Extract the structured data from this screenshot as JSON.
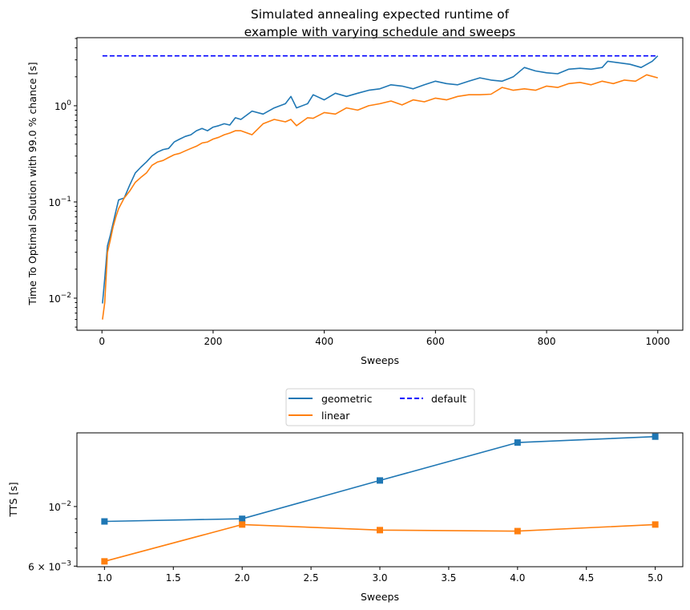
{
  "chart_data": [
    {
      "type": "line",
      "title": [
        "Simulated annealing expected runtime of",
        "example with varying schedule and sweeps"
      ],
      "xlabel": "Sweeps",
      "ylabel": "Time To Optimal Solution with 99.0 % chance [s]",
      "xlim": [
        -45,
        1045
      ],
      "ylim": [
        0.00464,
        5.1
      ],
      "yscale": "log",
      "xticks": [
        0,
        200,
        400,
        600,
        800,
        1000
      ],
      "yticks": [
        {
          "value": 1,
          "base": "10",
          "exp": "0"
        },
        {
          "value": 0.1,
          "base": "10",
          "exp": "−1"
        },
        {
          "value": 0.01,
          "base": "10",
          "exp": "−2"
        }
      ],
      "grid": false,
      "series": [
        {
          "name": "geometric",
          "color": "#1f77b4",
          "style": "solid",
          "points": [
            [
              1,
              0.0088
            ],
            [
              5,
              0.016
            ],
            [
              10,
              0.035
            ],
            [
              15,
              0.045
            ],
            [
              20,
              0.06
            ],
            [
              25,
              0.08
            ],
            [
              30,
              0.105
            ],
            [
              40,
              0.11
            ],
            [
              50,
              0.15
            ],
            [
              60,
              0.2
            ],
            [
              70,
              0.23
            ],
            [
              80,
              0.26
            ],
            [
              90,
              0.3
            ],
            [
              100,
              0.33
            ],
            [
              110,
              0.35
            ],
            [
              120,
              0.36
            ],
            [
              130,
              0.42
            ],
            [
              140,
              0.45
            ],
            [
              150,
              0.48
            ],
            [
              160,
              0.5
            ],
            [
              170,
              0.55
            ],
            [
              180,
              0.58
            ],
            [
              190,
              0.55
            ],
            [
              200,
              0.6
            ],
            [
              210,
              0.62
            ],
            [
              220,
              0.65
            ],
            [
              230,
              0.63
            ],
            [
              240,
              0.75
            ],
            [
              250,
              0.72
            ],
            [
              270,
              0.88
            ],
            [
              290,
              0.82
            ],
            [
              310,
              0.95
            ],
            [
              330,
              1.05
            ],
            [
              340,
              1.25
            ],
            [
              350,
              0.95
            ],
            [
              370,
              1.05
            ],
            [
              380,
              1.3
            ],
            [
              400,
              1.15
            ],
            [
              420,
              1.35
            ],
            [
              440,
              1.25
            ],
            [
              460,
              1.35
            ],
            [
              480,
              1.45
            ],
            [
              500,
              1.5
            ],
            [
              520,
              1.65
            ],
            [
              540,
              1.6
            ],
            [
              560,
              1.5
            ],
            [
              580,
              1.65
            ],
            [
              600,
              1.8
            ],
            [
              620,
              1.7
            ],
            [
              640,
              1.65
            ],
            [
              660,
              1.8
            ],
            [
              680,
              1.95
            ],
            [
              700,
              1.85
            ],
            [
              720,
              1.8
            ],
            [
              740,
              2.0
            ],
            [
              760,
              2.5
            ],
            [
              780,
              2.3
            ],
            [
              800,
              2.2
            ],
            [
              820,
              2.15
            ],
            [
              840,
              2.4
            ],
            [
              860,
              2.45
            ],
            [
              880,
              2.4
            ],
            [
              900,
              2.5
            ],
            [
              910,
              2.9
            ],
            [
              930,
              2.8
            ],
            [
              950,
              2.7
            ],
            [
              970,
              2.5
            ],
            [
              990,
              2.9
            ],
            [
              1000,
              3.3
            ]
          ]
        },
        {
          "name": "linear",
          "color": "#ff7f0e",
          "style": "solid",
          "points": [
            [
              1,
              0.006
            ],
            [
              5,
              0.009
            ],
            [
              10,
              0.03
            ],
            [
              15,
              0.04
            ],
            [
              20,
              0.055
            ],
            [
              25,
              0.07
            ],
            [
              30,
              0.085
            ],
            [
              40,
              0.11
            ],
            [
              50,
              0.13
            ],
            [
              60,
              0.16
            ],
            [
              70,
              0.18
            ],
            [
              80,
              0.2
            ],
            [
              90,
              0.24
            ],
            [
              100,
              0.26
            ],
            [
              110,
              0.27
            ],
            [
              120,
              0.29
            ],
            [
              130,
              0.31
            ],
            [
              140,
              0.32
            ],
            [
              150,
              0.34
            ],
            [
              160,
              0.36
            ],
            [
              170,
              0.38
            ],
            [
              180,
              0.41
            ],
            [
              190,
              0.42
            ],
            [
              200,
              0.45
            ],
            [
              210,
              0.47
            ],
            [
              220,
              0.5
            ],
            [
              230,
              0.52
            ],
            [
              240,
              0.55
            ],
            [
              250,
              0.55
            ],
            [
              270,
              0.5
            ],
            [
              290,
              0.65
            ],
            [
              310,
              0.72
            ],
            [
              330,
              0.68
            ],
            [
              340,
              0.72
            ],
            [
              350,
              0.62
            ],
            [
              370,
              0.75
            ],
            [
              380,
              0.74
            ],
            [
              400,
              0.85
            ],
            [
              420,
              0.82
            ],
            [
              440,
              0.95
            ],
            [
              460,
              0.9
            ],
            [
              480,
              1.0
            ],
            [
              500,
              1.05
            ],
            [
              520,
              1.12
            ],
            [
              540,
              1.02
            ],
            [
              560,
              1.15
            ],
            [
              580,
              1.1
            ],
            [
              600,
              1.2
            ],
            [
              620,
              1.15
            ],
            [
              640,
              1.25
            ],
            [
              660,
              1.3
            ],
            [
              680,
              1.3
            ],
            [
              700,
              1.32
            ],
            [
              720,
              1.55
            ],
            [
              740,
              1.45
            ],
            [
              760,
              1.5
            ],
            [
              780,
              1.45
            ],
            [
              800,
              1.6
            ],
            [
              820,
              1.55
            ],
            [
              840,
              1.7
            ],
            [
              860,
              1.75
            ],
            [
              880,
              1.65
            ],
            [
              900,
              1.8
            ],
            [
              920,
              1.7
            ],
            [
              940,
              1.85
            ],
            [
              960,
              1.8
            ],
            [
              980,
              2.1
            ],
            [
              1000,
              1.95
            ]
          ]
        },
        {
          "name": "default",
          "color": "#0000ff",
          "style": "dashed",
          "points": [
            [
              1,
              3.3
            ],
            [
              1000,
              3.3
            ]
          ]
        }
      ],
      "legend": {
        "placement": "below-center",
        "columns": 2,
        "entries": [
          "geometric",
          "linear",
          "default"
        ]
      }
    },
    {
      "type": "line",
      "xlabel": "Sweeps",
      "ylabel": "TTS [s]",
      "xlim": [
        0.8,
        5.2
      ],
      "ylim": [
        0.00597,
        0.0188
      ],
      "yscale": "log",
      "xticks": [
        "1.0",
        "1.5",
        "2.0",
        "2.5",
        "3.0",
        "3.5",
        "4.0",
        "4.5",
        "5.0"
      ],
      "yticks": [
        {
          "value": 0.006,
          "base": "6 × 10",
          "exp": "−3"
        },
        {
          "value": 0.01,
          "base": "10",
          "exp": "−2"
        }
      ],
      "grid": false,
      "marker": "square",
      "series": [
        {
          "color": "#1f77b4",
          "x": [
            1,
            2,
            3,
            4,
            5
          ],
          "values": [
            0.0088,
            0.009,
            0.0125,
            0.0173,
            0.0182
          ]
        },
        {
          "color": "#ff7f0e",
          "x": [
            1,
            2,
            3,
            4,
            5
          ],
          "values": [
            0.00625,
            0.00857,
            0.00817,
            0.0081,
            0.00857
          ]
        }
      ]
    }
  ]
}
